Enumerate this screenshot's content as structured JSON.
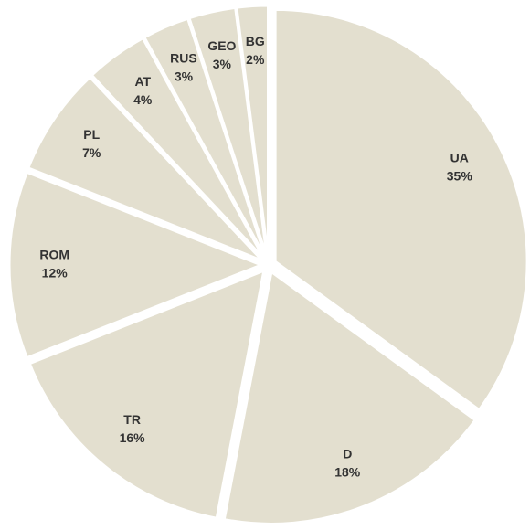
{
  "chart_data": {
    "type": "pie",
    "categories": [
      "UA",
      "D",
      "TR",
      "ROM",
      "PL",
      "AT",
      "RUS",
      "GEO",
      "BG"
    ],
    "values": [
      35,
      18,
      16,
      12,
      7,
      4,
      3,
      3,
      2
    ],
    "value_labels": [
      "35%",
      "18%",
      "16%",
      "12%",
      "7%",
      "4%",
      "3%",
      "3%",
      "2%"
    ],
    "color": "#e3dfcf"
  }
}
